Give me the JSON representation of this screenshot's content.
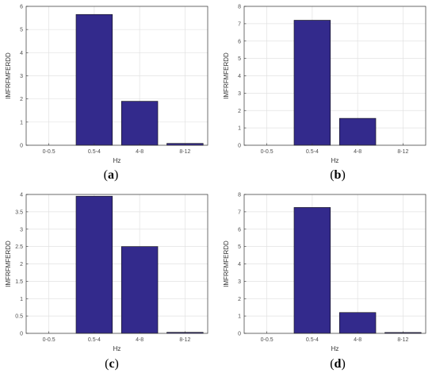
{
  "colors": {
    "bar": "#332a8c",
    "bar_stroke": "#111111",
    "grid": "#e2e2e2",
    "axis": "#333333"
  },
  "charts": [
    {
      "caption_open": "(",
      "caption_letter": "a",
      "caption_close": ")",
      "chart_data": {
        "type": "bar",
        "categories": [
          "0-0.5",
          "0.5-4",
          "4-8",
          "8-12"
        ],
        "values": [
          0,
          5.65,
          1.9,
          0.08
        ],
        "xlabel": "Hz",
        "ylabel": "IMFRFMFERDD",
        "ylim": [
          0,
          6
        ],
        "yticks": [
          0,
          1,
          2,
          3,
          4,
          5,
          6
        ],
        "grid": true
      }
    },
    {
      "caption_open": "(",
      "caption_letter": "b",
      "caption_close": ")",
      "chart_data": {
        "type": "bar",
        "categories": [
          "0-0.5",
          "0.5-4",
          "4-8",
          "8-12"
        ],
        "values": [
          0,
          7.2,
          1.55,
          0
        ],
        "xlabel": "Hz",
        "ylabel": "IMFRFMFERDD",
        "ylim": [
          0,
          8
        ],
        "yticks": [
          0,
          1,
          2,
          3,
          4,
          5,
          6,
          7,
          8
        ],
        "grid": true
      }
    },
    {
      "caption_open": "(",
      "caption_letter": "c",
      "caption_close": ")",
      "chart_data": {
        "type": "bar",
        "categories": [
          "0-0.5",
          "0.5-4",
          "4-8",
          "8-12"
        ],
        "values": [
          0,
          3.95,
          2.5,
          0.03
        ],
        "xlabel": "Hz",
        "ylabel": "IMFRFMFERDD",
        "ylim": [
          0,
          4
        ],
        "yticks": [
          0,
          0.5,
          1,
          1.5,
          2,
          2.5,
          3,
          3.5,
          4
        ],
        "grid": true
      }
    },
    {
      "caption_open": "(",
      "caption_letter": "d",
      "caption_close": ")",
      "chart_data": {
        "type": "bar",
        "categories": [
          "0-0.5",
          "0.5-4",
          "4-8",
          "8-12"
        ],
        "values": [
          0,
          7.25,
          1.2,
          0.05
        ],
        "xlabel": "Hz",
        "ylabel": "IMFRFMFERDD",
        "ylim": [
          0,
          8
        ],
        "yticks": [
          0,
          1,
          2,
          3,
          4,
          5,
          6,
          7,
          8
        ],
        "grid": true
      }
    }
  ]
}
